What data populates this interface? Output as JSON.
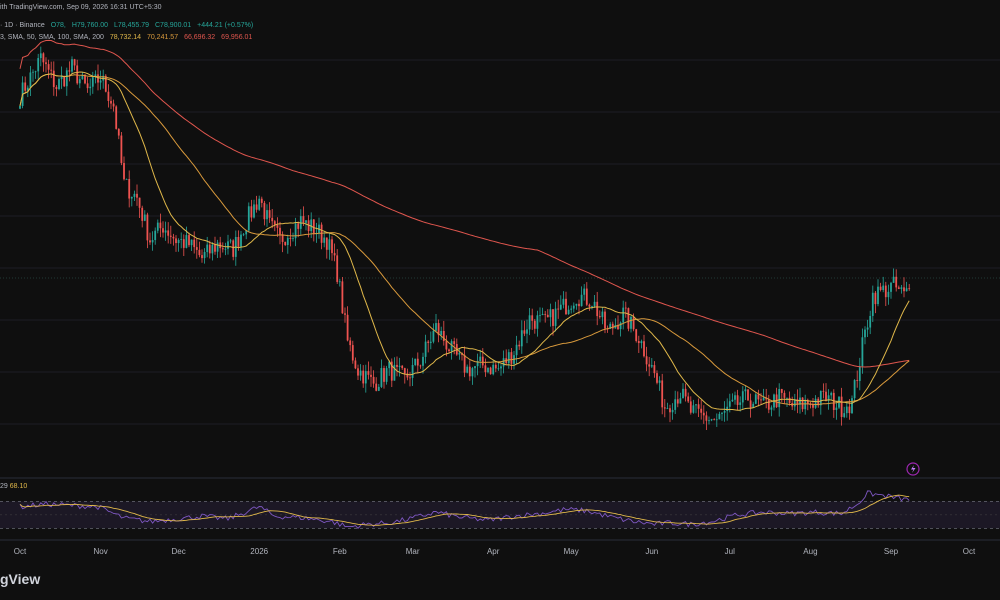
{
  "header": {
    "published": "ith TradingView.com, Sep 09, 2026 16:31 UTC+5:30",
    "symbol": "· 1D · Binance",
    "open": "O78,",
    "high": "H79,760.00",
    "low": "L78,455.79",
    "close": "C78,900.01",
    "change": "+444.21 (+0.57%)",
    "ma_label": "3, SMA, 50, SMA, 100, SMA, 200",
    "ma50_value": "78,732.14",
    "ma100_value": "70,241.57",
    "ma200a_value": "66,696.32",
    "ma200b_value": "69,956.01"
  },
  "rsi": {
    "value1": "29",
    "value2": "68.10"
  },
  "footer": {
    "brand": "gView"
  },
  "colors": {
    "up": "#26a69a",
    "down": "#ef5350",
    "ma_fast": "#e0b84a",
    "ma_slow": "#d99a3c",
    "ma_long": "#e0564e",
    "rsi_line": "#7e57c2",
    "rsi_ma": "#e0b84a"
  },
  "chart_data": {
    "type": "candlestick",
    "x_ticks": [
      "Oct",
      "Nov",
      "Dec",
      "2026",
      "Feb",
      "Mar",
      "Apr",
      "May",
      "Jun",
      "Jul",
      "Aug",
      "Sep",
      "Oct"
    ],
    "x_tick_index": [
      0,
      31,
      61,
      92,
      123,
      151,
      182,
      212,
      243,
      273,
      304,
      335,
      365
    ],
    "price_anchors": [
      [
        0,
        82.0
      ],
      [
        8,
        86.0
      ],
      [
        14,
        83.0
      ],
      [
        20,
        85.0
      ],
      [
        26,
        82.5
      ],
      [
        31,
        84.0
      ],
      [
        36,
        81.0
      ],
      [
        40,
        72.5
      ],
      [
        45,
        71.0
      ],
      [
        50,
        66.5
      ],
      [
        55,
        68.0
      ],
      [
        60,
        66.5
      ],
      [
        65,
        66.0
      ],
      [
        70,
        64.5
      ],
      [
        76,
        66.0
      ],
      [
        82,
        65.5
      ],
      [
        88,
        69.0
      ],
      [
        92,
        71.0
      ],
      [
        96,
        68.0
      ],
      [
        100,
        66.5
      ],
      [
        108,
        68.5
      ],
      [
        114,
        67.5
      ],
      [
        118,
        66.5
      ],
      [
        122,
        63.0
      ],
      [
        126,
        55.5
      ],
      [
        130,
        52.5
      ],
      [
        136,
        51.0
      ],
      [
        142,
        52.5
      ],
      [
        148,
        51.5
      ],
      [
        154,
        53.5
      ],
      [
        160,
        57.0
      ],
      [
        166,
        54.5
      ],
      [
        172,
        52.5
      ],
      [
        178,
        53.0
      ],
      [
        184,
        52.5
      ],
      [
        190,
        54.5
      ],
      [
        196,
        58.0
      ],
      [
        202,
        57.5
      ],
      [
        208,
        59.0
      ],
      [
        214,
        60.5
      ],
      [
        220,
        60.0
      ],
      [
        226,
        56.5
      ],
      [
        232,
        58.5
      ],
      [
        238,
        56.0
      ],
      [
        244,
        52.0
      ],
      [
        248,
        48.5
      ],
      [
        254,
        50.0
      ],
      [
        258,
        48.0
      ],
      [
        262,
        47.5
      ],
      [
        268,
        47.0
      ],
      [
        274,
        48.5
      ],
      [
        280,
        49.5
      ],
      [
        286,
        48.5
      ],
      [
        292,
        49.5
      ],
      [
        298,
        48.5
      ],
      [
        304,
        49.0
      ],
      [
        310,
        49.5
      ],
      [
        316,
        48.5
      ],
      [
        320,
        49.0
      ],
      [
        324,
        55.0
      ],
      [
        328,
        60.5
      ],
      [
        332,
        61.0
      ],
      [
        336,
        61.5
      ],
      [
        340,
        60.5
      ],
      [
        342,
        61.0
      ]
    ],
    "rsi_anchors": [
      [
        0,
        62
      ],
      [
        10,
        66
      ],
      [
        20,
        64
      ],
      [
        30,
        62
      ],
      [
        40,
        45
      ],
      [
        50,
        40
      ],
      [
        60,
        44
      ],
      [
        70,
        48
      ],
      [
        80,
        44
      ],
      [
        88,
        56
      ],
      [
        92,
        62
      ],
      [
        98,
        48
      ],
      [
        108,
        46
      ],
      [
        120,
        40
      ],
      [
        126,
        32
      ],
      [
        134,
        36
      ],
      [
        142,
        38
      ],
      [
        150,
        44
      ],
      [
        160,
        54
      ],
      [
        170,
        46
      ],
      [
        180,
        42
      ],
      [
        190,
        48
      ],
      [
        200,
        52
      ],
      [
        210,
        58
      ],
      [
        218,
        56
      ],
      [
        228,
        46
      ],
      [
        236,
        40
      ],
      [
        244,
        36
      ],
      [
        250,
        38
      ],
      [
        258,
        36
      ],
      [
        266,
        40
      ],
      [
        276,
        50
      ],
      [
        286,
        54
      ],
      [
        296,
        52
      ],
      [
        306,
        54
      ],
      [
        316,
        52
      ],
      [
        322,
        66
      ],
      [
        326,
        82
      ],
      [
        330,
        80
      ],
      [
        336,
        76
      ],
      [
        342,
        72
      ]
    ],
    "rsi_range": [
      20,
      90
    ],
    "rsi_bands": [
      30,
      70
    ],
    "ma_series": [
      "SMA 50",
      "SMA 100",
      "SMA 200"
    ]
  }
}
